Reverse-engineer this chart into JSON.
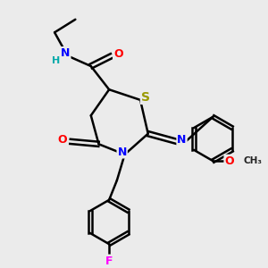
{
  "bg_color": "#ebebeb",
  "bond_color": "#000000",
  "bond_width": 1.8,
  "atoms": {
    "S": {
      "color": "#999900"
    },
    "N": {
      "color": "#0000ff"
    },
    "O": {
      "color": "#ff0000"
    },
    "F": {
      "color": "#ff00ff"
    },
    "H": {
      "color": "#00aaaa"
    }
  },
  "figsize": [
    3.0,
    3.0
  ],
  "dpi": 100
}
